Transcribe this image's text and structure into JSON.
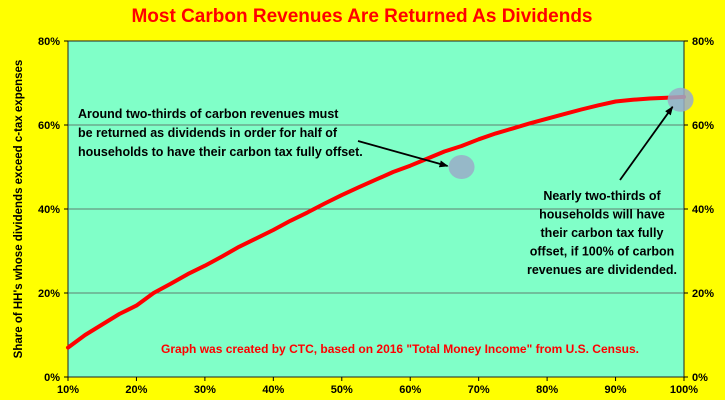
{
  "chart_data": {
    "type": "line",
    "title": "Most Carbon Revenues Are Returned As Dividends",
    "xlabel": "",
    "ylabel": "Share of HH's whose dividends exceed c-tax expenses",
    "x": [
      0.1,
      0.125,
      0.15,
      0.175,
      0.2,
      0.225,
      0.25,
      0.275,
      0.3,
      0.325,
      0.35,
      0.375,
      0.4,
      0.425,
      0.45,
      0.475,
      0.5,
      0.525,
      0.55,
      0.575,
      0.6,
      0.625,
      0.65,
      0.675,
      0.7,
      0.725,
      0.75,
      0.775,
      0.8,
      0.825,
      0.85,
      0.875,
      0.9,
      0.925,
      0.95,
      0.975,
      1.0
    ],
    "series": [
      {
        "name": "",
        "color": "#ff0000",
        "values": [
          0.07,
          0.1,
          0.125,
          0.15,
          0.17,
          0.2,
          0.222,
          0.245,
          0.265,
          0.287,
          0.31,
          0.33,
          0.35,
          0.372,
          0.392,
          0.413,
          0.433,
          0.452,
          0.47,
          0.488,
          0.503,
          0.52,
          0.537,
          0.55,
          0.566,
          0.58,
          0.592,
          0.604,
          0.615,
          0.626,
          0.637,
          0.647,
          0.656,
          0.66,
          0.663,
          0.665,
          0.667
        ]
      }
    ],
    "xlim": [
      0.1,
      1.0
    ],
    "ylim": [
      0,
      0.8
    ],
    "x_ticks": [
      "10%",
      "20%",
      "30%",
      "40%",
      "50%",
      "60%",
      "70%",
      "80%",
      "90%",
      "100%"
    ],
    "y_ticks_left": [
      "0%",
      "20%",
      "40%",
      "60%",
      "80%"
    ],
    "y_ticks_right": [
      "0%",
      "20%",
      "40%",
      "60%",
      "80%"
    ],
    "grid": "horizontal",
    "highlights": [
      {
        "x": 0.675,
        "y": 0.5
      },
      {
        "x": 0.995,
        "y": 0.66
      }
    ],
    "annotations": [
      {
        "lines": [
          "Around two-thirds of carbon revenues must",
          "be returned as dividends in order for half of",
          "households to have their carbon tax fully offset."
        ],
        "target": {
          "x": 0.675,
          "y": 0.5
        }
      },
      {
        "lines": [
          "Nearly two-thirds of",
          "households will have",
          "their carbon tax fully",
          "offset, if 100% of carbon",
          "revenues are dividended."
        ],
        "target": {
          "x": 0.995,
          "y": 0.66
        }
      }
    ],
    "credit": "Graph was created by CTC, based on 2016 \"Total Money Income\" from U.S. Census.",
    "colors": {
      "background": "#ffff00",
      "plot_area": "#80ffc8",
      "line": "#ff0000",
      "title": "#ff0000",
      "credit": "#ff0000",
      "highlight": "#9aabc8"
    }
  }
}
